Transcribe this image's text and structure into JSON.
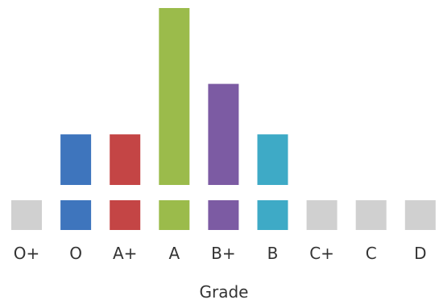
{
  "chart_data": {
    "type": "bar",
    "xlabel": "Grade",
    "categories": [
      "O+",
      "O",
      "A+",
      "A",
      "B+",
      "B",
      "C+",
      "C",
      "D"
    ],
    "values": [
      0,
      2,
      2,
      7,
      4,
      2,
      0,
      0,
      0
    ],
    "ylim": [
      0,
      7
    ],
    "grid": false,
    "colors": [
      "#d0d0d0",
      "#3e75bd",
      "#c44545",
      "#9bbb4b",
      "#7c5ba3",
      "#3eaac6",
      "#d0d0d0",
      "#d0d0d0",
      "#d0d0d0"
    ],
    "baseline_color": "#d0d0d0"
  }
}
